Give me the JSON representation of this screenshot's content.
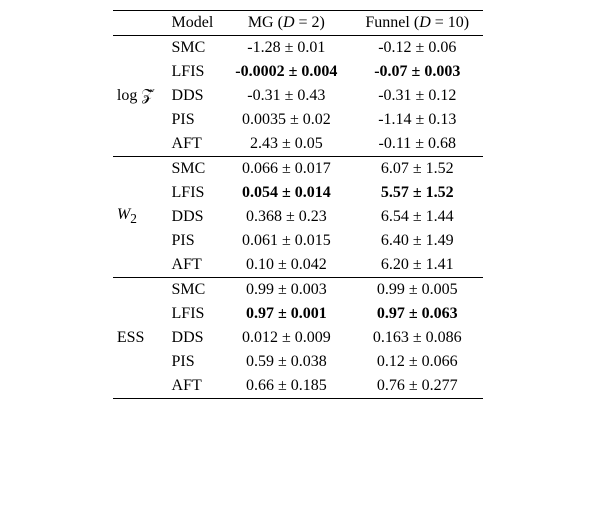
{
  "headers": {
    "model": "Model",
    "mg": "MG (D = 2)",
    "funnel": "Funnel (D = 10)"
  },
  "metrics": [
    {
      "label_html": "log <span style='position:relative;'>𝒵&#770;</span>",
      "label_plain": "log Ẑ",
      "rows": [
        {
          "model": "SMC",
          "mg": "-1.28 ± 0.01",
          "funnel": "-0.12 ± 0.06",
          "mg_bold": false,
          "funnel_bold": false
        },
        {
          "model": "LFIS",
          "mg": "-0.0002 ± 0.004",
          "funnel": "-0.07 ± 0.003",
          "mg_bold": true,
          "funnel_bold": true
        },
        {
          "model": "DDS",
          "mg": "-0.31 ± 0.43",
          "funnel": "-0.31 ± 0.12",
          "mg_bold": false,
          "funnel_bold": false
        },
        {
          "model": "PIS",
          "mg": "0.0035 ± 0.02",
          "funnel": "-1.14 ± 0.13",
          "mg_bold": false,
          "funnel_bold": false
        },
        {
          "model": "AFT",
          "mg": "2.43 ± 0.05",
          "funnel": "-0.11 ± 0.68",
          "mg_bold": false,
          "funnel_bold": false
        }
      ]
    },
    {
      "label_html": "<i>W</i><sub>2</sub>",
      "label_plain": "W2",
      "rows": [
        {
          "model": "SMC",
          "mg": "0.066 ± 0.017",
          "funnel": "6.07 ± 1.52",
          "mg_bold": false,
          "funnel_bold": false
        },
        {
          "model": "LFIS",
          "mg": "0.054 ± 0.014",
          "funnel": "5.57 ± 1.52",
          "mg_bold": true,
          "funnel_bold": true
        },
        {
          "model": "DDS",
          "mg": "0.368 ± 0.23",
          "funnel": "6.54 ± 1.44",
          "mg_bold": false,
          "funnel_bold": false
        },
        {
          "model": "PIS",
          "mg": "0.061 ± 0.015",
          "funnel": "6.40 ± 1.49",
          "mg_bold": false,
          "funnel_bold": false
        },
        {
          "model": "AFT",
          "mg": "0.10 ± 0.042",
          "funnel": "6.20 ± 1.41",
          "mg_bold": false,
          "funnel_bold": false
        }
      ]
    },
    {
      "label_html": "ESS",
      "label_plain": "ESS",
      "rows": [
        {
          "model": "SMC",
          "mg": "0.99 ± 0.003",
          "funnel": "0.99 ± 0.005",
          "mg_bold": false,
          "funnel_bold": false
        },
        {
          "model": "LFIS",
          "mg": "0.97 ± 0.001",
          "funnel": "0.97 ± 0.063",
          "mg_bold": true,
          "funnel_bold": true
        },
        {
          "model": "DDS",
          "mg": "0.012 ± 0.009",
          "funnel": "0.163 ± 0.086",
          "mg_bold": false,
          "funnel_bold": false
        },
        {
          "model": "PIS",
          "mg": "0.59 ± 0.038",
          "funnel": "0.12 ± 0.066",
          "mg_bold": false,
          "funnel_bold": false
        },
        {
          "model": "AFT",
          "mg": "0.66 ± 0.185",
          "funnel": "0.76 ± 0.277",
          "mg_bold": false,
          "funnel_bold": false
        }
      ]
    }
  ],
  "style": {
    "font_family": "Times New Roman",
    "font_size_pt": 16,
    "background": "#ffffff",
    "text_color": "#000000",
    "rule_color": "#000000"
  }
}
